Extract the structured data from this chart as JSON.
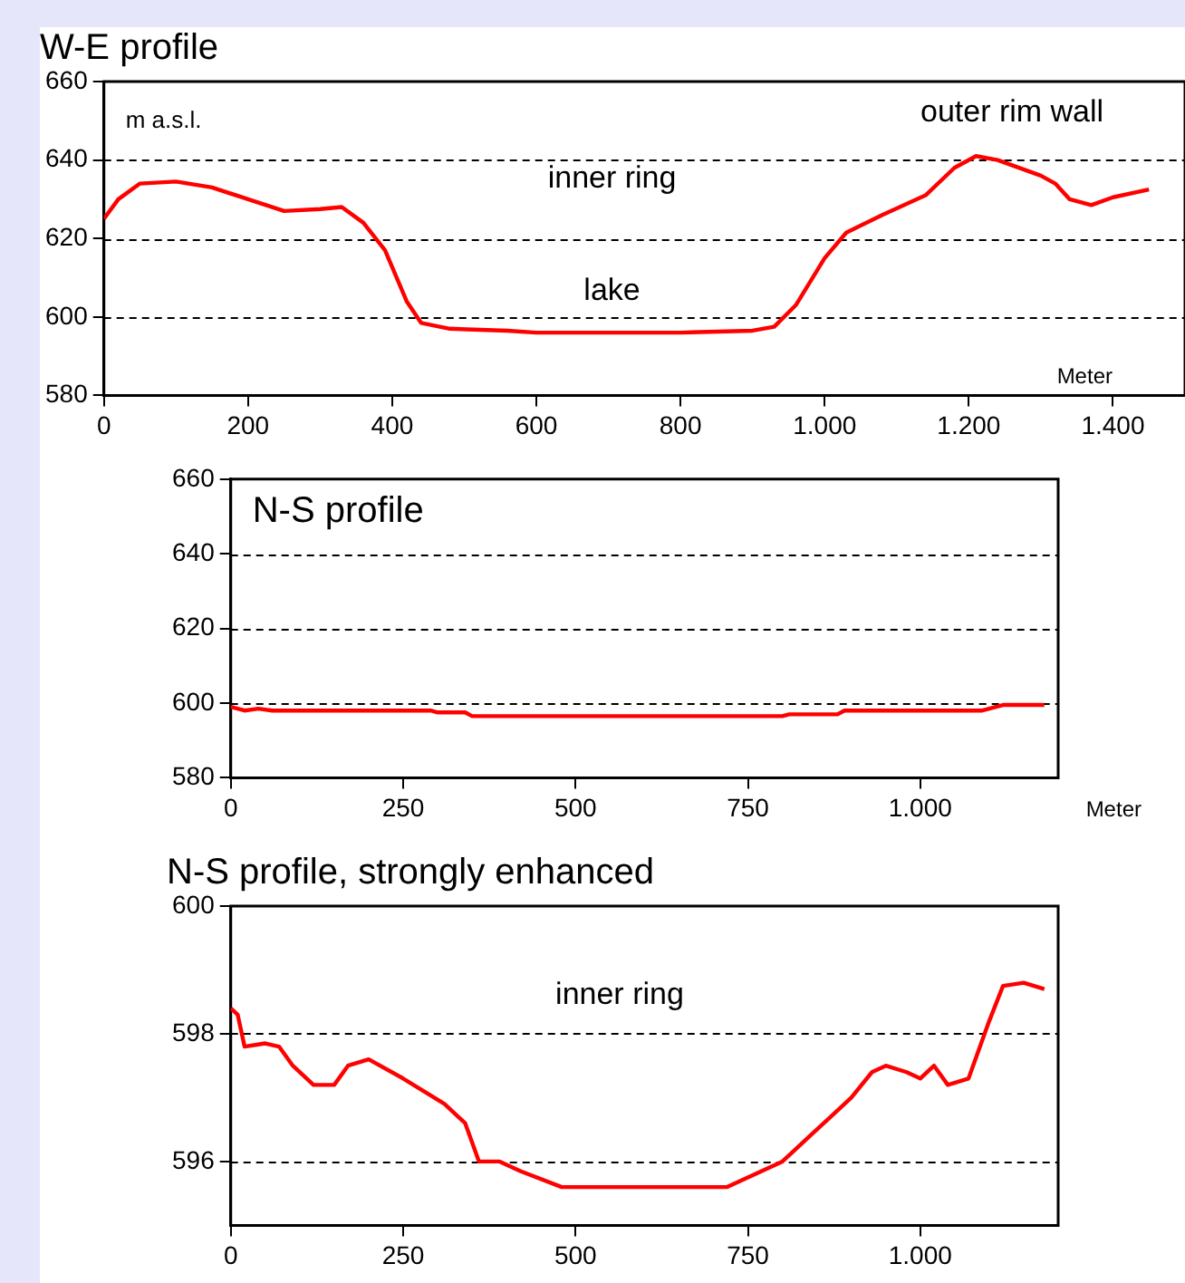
{
  "chart_data": [
    {
      "type": "line",
      "title": "W-E profile",
      "xlabel": "Meter",
      "ylabel": "m a.s.l.",
      "xlim": [
        0,
        1500
      ],
      "ylim": [
        580,
        660
      ],
      "xticks": [
        0,
        200,
        400,
        600,
        800,
        {
          "value": 1000,
          "label": "1.000"
        },
        {
          "value": 1200,
          "label": "1.200"
        },
        {
          "value": 1400,
          "label": "1.400"
        }
      ],
      "yticks": [
        580,
        600,
        620,
        640,
        660
      ],
      "grid": "y",
      "legend": false,
      "annotations": [
        "outer rim wall",
        "inner ring",
        "lake"
      ],
      "series": [
        {
          "color": "#ff0000",
          "x": [
            0,
            20,
            50,
            100,
            150,
            200,
            250,
            300,
            330,
            360,
            390,
            420,
            440,
            480,
            560,
            600,
            800,
            900,
            930,
            960,
            1000,
            1030,
            1080,
            1140,
            1180,
            1210,
            1240,
            1300,
            1320,
            1340,
            1370,
            1400,
            1450
          ],
          "values": [
            625,
            630,
            634,
            634.5,
            633,
            630,
            627,
            627.5,
            628,
            624,
            617,
            604,
            598.5,
            597,
            596.5,
            596,
            596,
            596.5,
            597.5,
            603,
            615,
            621.5,
            626,
            631,
            638,
            641,
            640,
            636,
            634,
            630,
            628.5,
            630.5,
            632.5
          ]
        }
      ]
    },
    {
      "type": "line",
      "title": "N-S profile",
      "xlabel": "Meter",
      "xlim": [
        0,
        1200
      ],
      "ylim": [
        580,
        660
      ],
      "xticks": [
        0,
        250,
        500,
        750,
        {
          "value": 1000,
          "label": "1.000"
        }
      ],
      "yticks": [
        580,
        600,
        620,
        640,
        660
      ],
      "grid": "y",
      "legend": false,
      "series": [
        {
          "color": "#ff0000",
          "x": [
            0,
            20,
            40,
            60,
            290,
            300,
            340,
            350,
            800,
            810,
            880,
            890,
            1090,
            1100,
            1120,
            1180
          ],
          "values": [
            599,
            598,
            598.5,
            598,
            598,
            597.5,
            597.5,
            596.5,
            596.5,
            597,
            597,
            598,
            598,
            598.5,
            599.5,
            599.5
          ]
        }
      ]
    },
    {
      "type": "line",
      "title": "N-S profile, strongly enhanced",
      "xlim": [
        0,
        1200
      ],
      "ylim": [
        595,
        600
      ],
      "xticks": [
        0,
        250,
        500,
        750,
        {
          "value": 1000,
          "label": "1.000"
        }
      ],
      "yticks": [
        596,
        598,
        600
      ],
      "grid": "y",
      "legend": false,
      "annotations": [
        "inner ring"
      ],
      "series": [
        {
          "color": "#ff0000",
          "x": [
            0,
            10,
            20,
            50,
            70,
            90,
            120,
            150,
            170,
            200,
            250,
            280,
            310,
            340,
            360,
            390,
            420,
            480,
            720,
            760,
            800,
            840,
            870,
            900,
            930,
            950,
            980,
            1000,
            1020,
            1040,
            1070,
            1100,
            1120,
            1150,
            1180
          ],
          "values": [
            598.4,
            598.3,
            597.8,
            597.85,
            597.8,
            597.5,
            597.2,
            597.2,
            597.5,
            597.6,
            597.3,
            597.1,
            596.9,
            596.6,
            596.0,
            596.0,
            595.85,
            595.6,
            595.6,
            595.8,
            596.0,
            596.4,
            596.7,
            597.0,
            597.4,
            597.5,
            597.4,
            597.3,
            597.5,
            597.2,
            597.3,
            598.2,
            598.75,
            598.8,
            598.7
          ]
        }
      ]
    }
  ]
}
